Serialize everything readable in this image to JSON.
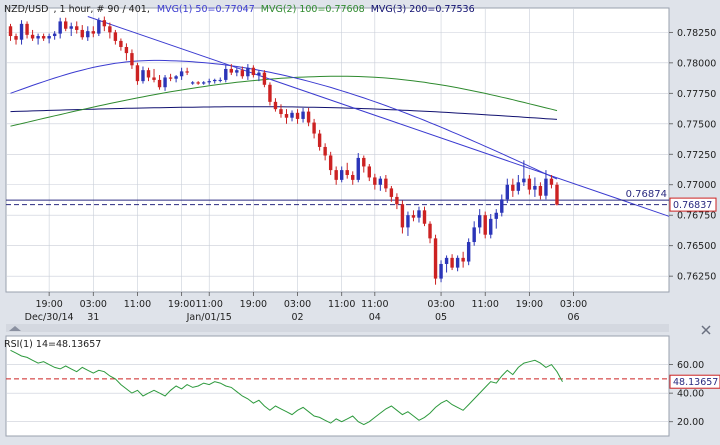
{
  "header": {
    "symbol": "NZD/USD",
    "meta": ", 1 hour, # 90 / 401,",
    "mv1": "MVG(1) 50=0.77047",
    "mv2": "MVG(2) 100=0.77608",
    "mv3": "MVG(3) 200=0.77536"
  },
  "rsi_header": "RSI(1) 14=48.13657",
  "colors": {
    "background": "#dfe3ea",
    "panel": "#ffffff",
    "grid": "#c9ced8",
    "up": "#2b35b8",
    "down": "#cc2222",
    "ma50": "#3b3bd0",
    "ma100": "#2e8a2e",
    "ma200": "#101070",
    "trend": "#3b3bd0",
    "rsi": "#2e9a3e",
    "label_bg": "#ffffff"
  },
  "chart_data": {
    "type": "candlestick",
    "ylim": [
      0.7612,
      0.7845
    ],
    "yticks": [
      "0.78250",
      "0.78000",
      "0.77750",
      "0.77500",
      "0.77250",
      "0.77000",
      "0.76750",
      "0.76500",
      "0.76250"
    ],
    "xticks": [
      {
        "label": "19:00",
        "date": "Dec/30/14",
        "i": 7
      },
      {
        "label": "03:00",
        "date": "31",
        "i": 15
      },
      {
        "label": "11:00",
        "date": "",
        "i": 23
      },
      {
        "label": "19:00",
        "date": "",
        "i": 31
      },
      {
        "label": "11:00",
        "date": "Jan/01/15",
        "i": 36
      },
      {
        "label": "19:00",
        "date": "",
        "i": 44
      },
      {
        "label": "03:00",
        "date": "02",
        "i": 52
      },
      {
        "label": "11:00",
        "date": "",
        "i": 60
      },
      {
        "label": "11:00",
        "date": "04",
        "i": 66
      },
      {
        "label": "03:00",
        "date": "05",
        "i": 78
      },
      {
        "label": "11:00",
        "date": "",
        "i": 86
      },
      {
        "label": "19:00",
        "date": "",
        "i": 94
      },
      {
        "label": "03:00",
        "date": "06",
        "i": 102
      }
    ],
    "candles": [
      [
        0.783,
        0.7832,
        0.7818,
        0.7822
      ],
      [
        0.7822,
        0.7824,
        0.7815,
        0.7819
      ],
      [
        0.7819,
        0.7835,
        0.7815,
        0.7832
      ],
      [
        0.7832,
        0.7834,
        0.782,
        0.7823
      ],
      [
        0.7823,
        0.7827,
        0.7818,
        0.782
      ],
      [
        0.782,
        0.7824,
        0.7815,
        0.7822
      ],
      [
        0.7822,
        0.7824,
        0.7818,
        0.782
      ],
      [
        0.782,
        0.7824,
        0.7816,
        0.7822
      ],
      [
        0.7822,
        0.7826,
        0.7819,
        0.7824
      ],
      [
        0.7824,
        0.7837,
        0.782,
        0.7834
      ],
      [
        0.7834,
        0.7837,
        0.7826,
        0.7828
      ],
      [
        0.7828,
        0.7833,
        0.7822,
        0.783
      ],
      [
        0.783,
        0.7834,
        0.7824,
        0.7827
      ],
      [
        0.7827,
        0.7831,
        0.7819,
        0.7821
      ],
      [
        0.7821,
        0.783,
        0.7818,
        0.7826
      ],
      [
        0.7826,
        0.783,
        0.7821,
        0.7824
      ],
      [
        0.7824,
        0.7837,
        0.7822,
        0.7835
      ],
      [
        0.7835,
        0.7838,
        0.7826,
        0.783
      ],
      [
        0.783,
        0.7833,
        0.782,
        0.7825
      ],
      [
        0.7825,
        0.7827,
        0.7815,
        0.7818
      ],
      [
        0.7818,
        0.782,
        0.781,
        0.7813
      ],
      [
        0.7813,
        0.7816,
        0.7802,
        0.7808
      ],
      [
        0.7808,
        0.7811,
        0.7795,
        0.7798
      ],
      [
        0.7798,
        0.78,
        0.7782,
        0.7785
      ],
      [
        0.7785,
        0.7797,
        0.7783,
        0.7794
      ],
      [
        0.7794,
        0.7796,
        0.7785,
        0.7788
      ],
      [
        0.7788,
        0.7795,
        0.7784,
        0.7786
      ],
      [
        0.7786,
        0.779,
        0.7778,
        0.778
      ],
      [
        0.778,
        0.779,
        0.7777,
        0.7788
      ],
      [
        0.7788,
        0.7791,
        0.7785,
        0.7787
      ],
      [
        0.7787,
        0.779,
        0.7784,
        0.7789
      ],
      [
        0.7789,
        0.7796,
        0.7786,
        0.7793
      ],
      [
        0.7793,
        0.7796,
        0.779,
        0.7792
      ],
      [
        0.7783,
        0.7785,
        0.7782,
        0.7784
      ],
      [
        0.7784,
        0.7785,
        0.7782,
        0.7783
      ],
      [
        0.7783,
        0.7785,
        0.7782,
        0.7784
      ],
      [
        0.7784,
        0.7787,
        0.7782,
        0.7785
      ],
      [
        0.7785,
        0.7787,
        0.7783,
        0.7786
      ],
      [
        0.7786,
        0.7788,
        0.7784,
        0.7786
      ],
      [
        0.7786,
        0.7798,
        0.7784,
        0.7795
      ],
      [
        0.7795,
        0.7799,
        0.779,
        0.7792
      ],
      [
        0.7792,
        0.7796,
        0.7789,
        0.7794
      ],
      [
        0.7794,
        0.7797,
        0.7787,
        0.7789
      ],
      [
        0.7789,
        0.7799,
        0.7786,
        0.7796
      ],
      [
        0.7796,
        0.7798,
        0.7788,
        0.779
      ],
      [
        0.779,
        0.7794,
        0.7785,
        0.7792
      ],
      [
        0.7792,
        0.7794,
        0.778,
        0.7782
      ],
      [
        0.7782,
        0.7784,
        0.7765,
        0.7768
      ],
      [
        0.7768,
        0.7771,
        0.776,
        0.7762
      ],
      [
        0.7762,
        0.7766,
        0.7755,
        0.7758
      ],
      [
        0.7758,
        0.7762,
        0.775,
        0.7755
      ],
      [
        0.7755,
        0.7761,
        0.7752,
        0.7759
      ],
      [
        0.7759,
        0.7762,
        0.775,
        0.7754
      ],
      [
        0.7754,
        0.7763,
        0.7751,
        0.776
      ],
      [
        0.776,
        0.7763,
        0.7748,
        0.7751
      ],
      [
        0.7751,
        0.7754,
        0.7738,
        0.7742
      ],
      [
        0.7742,
        0.7745,
        0.7728,
        0.7731
      ],
      [
        0.7731,
        0.7734,
        0.772,
        0.7724
      ],
      [
        0.7724,
        0.7727,
        0.7708,
        0.7712
      ],
      [
        0.7712,
        0.7715,
        0.77,
        0.7704
      ],
      [
        0.7704,
        0.7715,
        0.7702,
        0.7712
      ],
      [
        0.7712,
        0.7718,
        0.7705,
        0.7708
      ],
      [
        0.7708,
        0.7711,
        0.77,
        0.7704
      ],
      [
        0.7704,
        0.7726,
        0.7702,
        0.7722
      ],
      [
        0.7722,
        0.7724,
        0.771,
        0.7715
      ],
      [
        0.7715,
        0.7717,
        0.7703,
        0.7706
      ],
      [
        0.7706,
        0.7709,
        0.7696,
        0.77
      ],
      [
        0.77,
        0.7707,
        0.7695,
        0.7705
      ],
      [
        0.7705,
        0.7708,
        0.7694,
        0.7697
      ],
      [
        0.7697,
        0.7699,
        0.7686,
        0.769
      ],
      [
        0.769,
        0.7693,
        0.768,
        0.7684
      ],
      [
        0.7684,
        0.7687,
        0.766,
        0.7665
      ],
      [
        0.7665,
        0.7678,
        0.7658,
        0.7675
      ],
      [
        0.7675,
        0.7679,
        0.767,
        0.7673
      ],
      [
        0.7673,
        0.7682,
        0.7669,
        0.7679
      ],
      [
        0.7679,
        0.7682,
        0.7666,
        0.7668
      ],
      [
        0.7668,
        0.767,
        0.7652,
        0.7656
      ],
      [
        0.7656,
        0.7659,
        0.7618,
        0.7623
      ],
      [
        0.7623,
        0.7638,
        0.762,
        0.7635
      ],
      [
        0.7635,
        0.7642,
        0.7628,
        0.764
      ],
      [
        0.764,
        0.7643,
        0.763,
        0.7632
      ],
      [
        0.7632,
        0.7642,
        0.7629,
        0.764
      ],
      [
        0.764,
        0.7645,
        0.7632,
        0.7637
      ],
      [
        0.7637,
        0.7656,
        0.7634,
        0.7653
      ],
      [
        0.7653,
        0.767,
        0.765,
        0.7665
      ],
      [
        0.7665,
        0.768,
        0.766,
        0.7675
      ],
      [
        0.7675,
        0.7678,
        0.7656,
        0.7659
      ],
      [
        0.7659,
        0.7676,
        0.7656,
        0.7672
      ],
      [
        0.7672,
        0.768,
        0.7664,
        0.7677
      ],
      [
        0.7677,
        0.7692,
        0.7674,
        0.7688
      ],
      [
        0.7688,
        0.7705,
        0.7685,
        0.77
      ],
      [
        0.77,
        0.7705,
        0.769,
        0.7695
      ],
      [
        0.7695,
        0.7708,
        0.7692,
        0.7702
      ],
      [
        0.7702,
        0.772,
        0.7699,
        0.7705
      ],
      [
        0.7705,
        0.7708,
        0.7692,
        0.7696
      ],
      [
        0.7696,
        0.7706,
        0.769,
        0.7699
      ],
      [
        0.7699,
        0.7702,
        0.7688,
        0.7691
      ],
      [
        0.7691,
        0.7712,
        0.7688,
        0.7705
      ],
      [
        0.7705,
        0.7708,
        0.7697,
        0.77
      ],
      [
        0.77,
        0.7702,
        0.7683,
        0.76837
      ]
    ],
    "ma50": {
      "start": 0.7775,
      "peak": 0.7802,
      "peak_i": 26,
      "end": 0.77047
    },
    "ma100": {
      "start": 0.7748,
      "peak": 0.7789,
      "peak_i": 60,
      "end": 0.77608
    },
    "ma200": {
      "start": 0.776,
      "peak": 0.7764,
      "peak_i": 45,
      "end": 0.77536
    },
    "trendline": {
      "from": [
        14,
        0.7838
      ],
      "to": [
        120,
        0.7673
      ]
    },
    "horizontal_line": 0.76874,
    "horizontal_label": "0.76874",
    "dashed_line": 0.76837,
    "current_label": "0.76837",
    "rsi": {
      "ylim": [
        10,
        80
      ],
      "ticks": [
        "60.00",
        "40.00",
        "20.00"
      ],
      "level": 50,
      "current_label": "48.13657",
      "values": [
        70,
        68,
        66,
        65,
        63,
        61,
        62,
        60,
        58,
        57,
        59,
        57,
        55,
        58,
        56,
        54,
        56,
        55,
        52,
        50,
        46,
        43,
        40,
        42,
        38,
        40,
        42,
        40,
        38,
        42,
        45,
        43,
        46,
        44,
        45,
        47,
        46,
        48,
        47,
        45,
        44,
        41,
        38,
        36,
        33,
        35,
        31,
        28,
        31,
        29,
        27,
        25,
        28,
        30,
        27,
        24,
        23,
        21,
        19,
        22,
        20,
        22,
        24,
        20,
        18,
        20,
        23,
        26,
        29,
        31,
        28,
        25,
        27,
        24,
        21,
        23,
        26,
        30,
        33,
        35,
        32,
        30,
        28,
        32,
        36,
        40,
        44,
        48,
        47,
        52,
        56,
        53,
        58,
        61,
        62,
        63,
        61,
        58,
        60,
        55,
        48
      ]
    }
  }
}
